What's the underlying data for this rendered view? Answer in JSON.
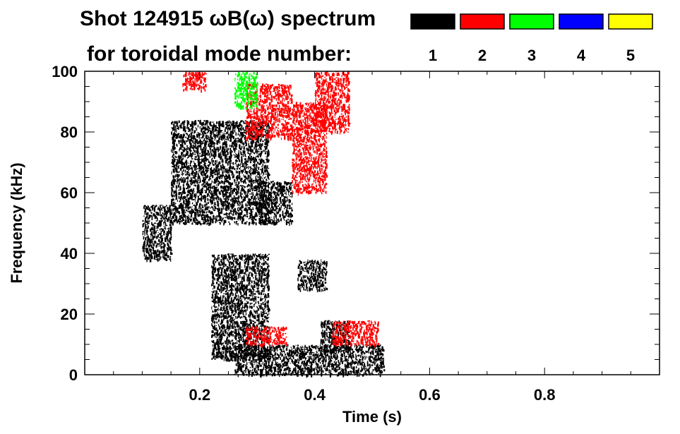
{
  "chart_data": {
    "type": "heatmap",
    "title": "Shot 124915 ωB(ω) spectrum",
    "subtitle": "for toroidal mode number:",
    "xlabel": "Time (s)",
    "ylabel": "Frequency (kHz)",
    "xlim": [
      0.0,
      1.0
    ],
    "ylim": [
      0,
      100
    ],
    "x_ticks": [
      0.2,
      0.4,
      0.6,
      0.8
    ],
    "x_tick_labels": [
      "0.2",
      "0.4",
      "0.6",
      "0.8"
    ],
    "y_ticks": [
      0,
      20,
      40,
      60,
      80,
      100
    ],
    "y_tick_labels": [
      "0",
      "20",
      "40",
      "60",
      "80",
      "100"
    ],
    "grid": false,
    "legend_position": "top-right",
    "legend": [
      {
        "label": "1",
        "color": "#000000"
      },
      {
        "label": "2",
        "color": "#ff0000"
      },
      {
        "label": "3",
        "color": "#00ff00"
      },
      {
        "label": "4",
        "color": "#0000ff"
      },
      {
        "label": "5",
        "color": "#ffff00"
      }
    ],
    "series": [
      {
        "mode": "1",
        "color": "#000000",
        "regions": [
          {
            "t": [
              0.1,
              0.15
            ],
            "f": [
              38,
              56
            ]
          },
          {
            "t": [
              0.15,
              0.32
            ],
            "f": [
              50,
              84
            ]
          },
          {
            "t": [
              0.3,
              0.36
            ],
            "f": [
              50,
              64
            ]
          },
          {
            "t": [
              0.26,
              0.52
            ],
            "f": [
              0,
              10
            ]
          },
          {
            "t": [
              0.41,
              0.46
            ],
            "f": [
              8,
              18
            ]
          },
          {
            "t": [
              0.37,
              0.42
            ],
            "f": [
              28,
              38
            ]
          },
          {
            "t": [
              0.22,
              0.32
            ],
            "f": [
              5,
              40
            ]
          }
        ]
      },
      {
        "mode": "2",
        "color": "#ff0000",
        "regions": [
          {
            "t": [
              0.28,
              0.36
            ],
            "f": [
              78,
              96
            ]
          },
          {
            "t": [
              0.36,
              0.42
            ],
            "f": [
              60,
              90
            ]
          },
          {
            "t": [
              0.4,
              0.46
            ],
            "f": [
              80,
              100
            ]
          },
          {
            "t": [
              0.17,
              0.21
            ],
            "f": [
              94,
              100
            ]
          },
          {
            "t": [
              0.28,
              0.35
            ],
            "f": [
              10,
              16
            ]
          },
          {
            "t": [
              0.43,
              0.51
            ],
            "f": [
              10,
              18
            ]
          }
        ]
      },
      {
        "mode": "3",
        "color": "#00ff00",
        "regions": [
          {
            "t": [
              0.26,
              0.3
            ],
            "f": [
              88,
              100
            ]
          }
        ]
      },
      {
        "mode": "4",
        "color": "#0000ff",
        "regions": []
      },
      {
        "mode": "5",
        "color": "#ffff00",
        "regions": []
      }
    ]
  }
}
